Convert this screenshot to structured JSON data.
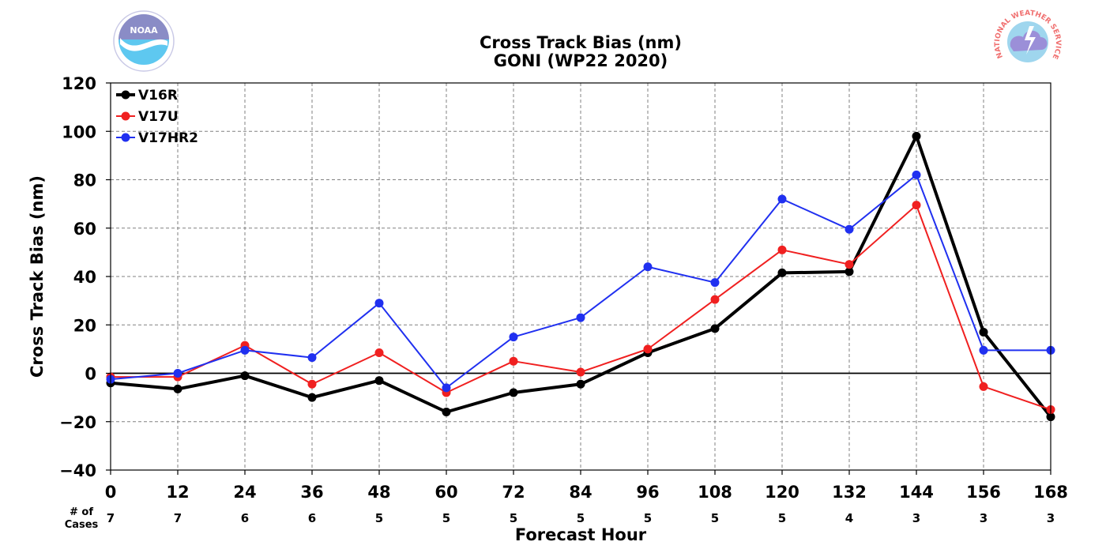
{
  "logos": {
    "left": {
      "name": "noaa-logo",
      "text": "NOAA",
      "colors": {
        "upper": "#8a8cc6",
        "lower": "#5ec8f0",
        "ring": "#ffffff"
      }
    },
    "right": {
      "name": "nws-logo",
      "text": "NATIONAL WEATHER SERVICE",
      "colors": {
        "ring_text": "#f07070",
        "cloud": "#9b8fd8",
        "sky": "#9fd6ee"
      }
    }
  },
  "chart_data": {
    "type": "line",
    "title": "Cross Track Bias (nm)",
    "subtitle": "GONI (WP22 2020)",
    "xlabel": "Forecast Hour",
    "ylabel": "Cross Track Bias (nm)",
    "x": [
      0,
      12,
      24,
      36,
      48,
      60,
      72,
      84,
      96,
      108,
      120,
      132,
      144,
      156,
      168
    ],
    "x_ticks": [
      "0",
      "12",
      "24",
      "36",
      "48",
      "60",
      "72",
      "84",
      "96",
      "108",
      "120",
      "132",
      "144",
      "156",
      "168"
    ],
    "y_ticks": [
      "120",
      "100",
      "80",
      "60",
      "40",
      "20",
      "0",
      "−20",
      "−40"
    ],
    "y_tick_values": [
      120,
      100,
      80,
      60,
      40,
      20,
      0,
      -20,
      -40
    ],
    "xlim": [
      0,
      168
    ],
    "ylim": [
      -40,
      120
    ],
    "grid": true,
    "zero_line": true,
    "legend_position": "top-left",
    "cases_label": "# of\nCases",
    "cases": [
      "7",
      "7",
      "6",
      "6",
      "5",
      "5",
      "5",
      "5",
      "5",
      "5",
      "5",
      "4",
      "3",
      "3",
      "3"
    ],
    "series": [
      {
        "name": "V16R",
        "color": "#000000",
        "weight": "heavy",
        "values": [
          -4,
          -6.5,
          -1,
          -10,
          -3,
          -16,
          -8,
          -4.5,
          8.5,
          18.5,
          41.5,
          42,
          98,
          17,
          -18
        ]
      },
      {
        "name": "V17U",
        "color": "#f02020",
        "weight": "normal",
        "values": [
          -1.5,
          -1.5,
          11.5,
          -4.5,
          8.5,
          -8,
          5,
          0.5,
          10,
          30.5,
          51,
          45,
          69.5,
          -5.5,
          -15
        ]
      },
      {
        "name": "V17HR2",
        "color": "#2030f0",
        "weight": "normal",
        "values": [
          -2.5,
          0,
          9.5,
          6.5,
          29,
          -6,
          15,
          23,
          44,
          37.5,
          72,
          59.5,
          82,
          9.5,
          9.5
        ]
      }
    ]
  }
}
